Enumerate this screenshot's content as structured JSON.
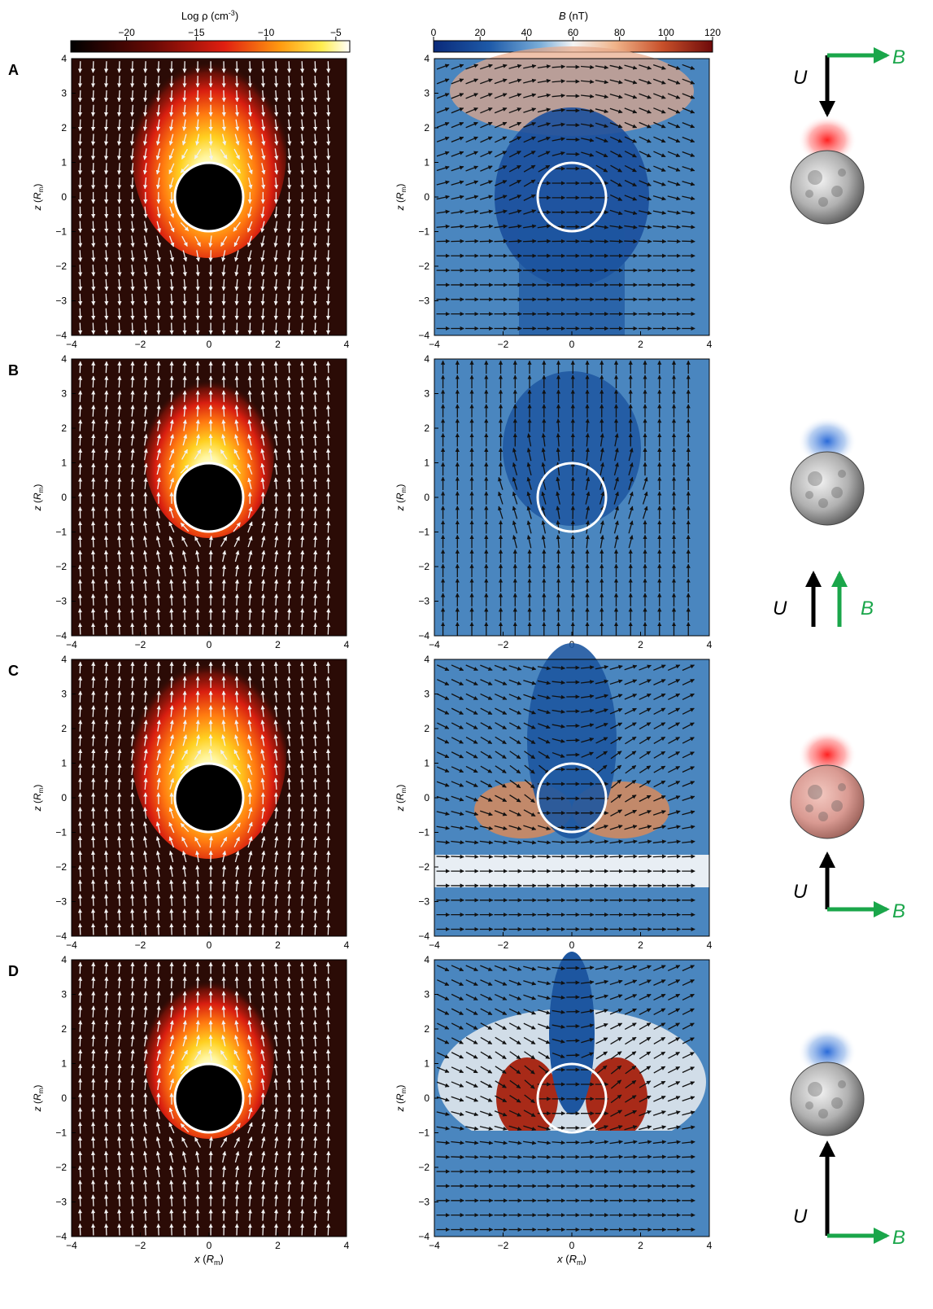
{
  "colorbars": {
    "density": {
      "title": "Log ρ (cm",
      "title_sup": "-3",
      "title_close": ")",
      "ticks": [
        "−20",
        "−15",
        "−10",
        "−5"
      ],
      "tick_values": [
        -20,
        -15,
        -10,
        -5
      ],
      "range": [
        -24,
        -4
      ]
    },
    "field": {
      "title_var": "B",
      "title_unit": " (nT)",
      "ticks": [
        "0",
        "20",
        "40",
        "60",
        "80",
        "100",
        "120"
      ],
      "range": [
        0,
        120
      ]
    }
  },
  "axes": {
    "x_ticks": [
      "−4",
      "−2",
      "0",
      "2",
      "4"
    ],
    "y_ticks": [
      "4",
      "3",
      "2",
      "1",
      "0",
      "−1",
      "−2",
      "−3",
      "−4"
    ],
    "y_label": "z (R",
    "y_label_sub": "m",
    "y_label_close": ")",
    "x_label": "x (R",
    "x_label_sub": "m",
    "x_label_close": ")",
    "range": [
      -4,
      4
    ]
  },
  "panels": [
    {
      "label": "A",
      "flow": "down",
      "field": "transverse",
      "halo": "red",
      "moon_tint": "gray",
      "diagram": {
        "u": "U",
        "b": "B"
      }
    },
    {
      "label": "B",
      "flow": "up",
      "field": "parallel",
      "halo": "blue",
      "moon_tint": "gray",
      "diagram": {
        "u": "U",
        "b": "B"
      }
    },
    {
      "label": "C",
      "flow": "up",
      "field": "transverse",
      "halo": "red",
      "moon_tint": "pink",
      "diagram": {
        "u": "U",
        "b": "B"
      }
    },
    {
      "label": "D",
      "flow": "up",
      "field": "transverse-strong",
      "halo": "blue",
      "moon_tint": "gray",
      "diagram": {
        "u": "U",
        "b": "B"
      }
    }
  ],
  "colors": {
    "background_dark": "#2b0b06",
    "field_blue": "#4a86bf",
    "arrow_green": "#1aa64a"
  }
}
